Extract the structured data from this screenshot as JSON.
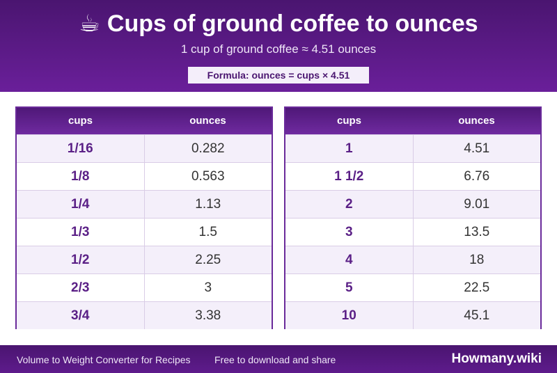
{
  "header": {
    "icon": "coffee-cup-icon",
    "icon_glyph": "☕",
    "title": "Cups of ground coffee to ounces",
    "subtitle": "1 cup of ground coffee ≈ 4.51 ounces",
    "formula": "Formula: ounces = cups × 4.51"
  },
  "tables": [
    {
      "headers": [
        "cups",
        "ounces"
      ],
      "rows": [
        [
          "1/16",
          "0.282"
        ],
        [
          "1/8",
          "0.563"
        ],
        [
          "1/4",
          "1.13"
        ],
        [
          "1/3",
          "1.5"
        ],
        [
          "1/2",
          "2.25"
        ],
        [
          "2/3",
          "3"
        ],
        [
          "3/4",
          "3.38"
        ]
      ]
    },
    {
      "headers": [
        "cups",
        "ounces"
      ],
      "rows": [
        [
          "1",
          "4.51"
        ],
        [
          "1 1/2",
          "6.76"
        ],
        [
          "2",
          "9.01"
        ],
        [
          "3",
          "13.5"
        ],
        [
          "4",
          "18"
        ],
        [
          "5",
          "22.5"
        ],
        [
          "10",
          "45.1"
        ]
      ]
    }
  ],
  "footer": {
    "left": "Volume to Weight Converter for Recipes",
    "middle": "Free to download and share",
    "brand": "Howmany.wiki"
  },
  "colors": {
    "header_bg": "#5a1a86",
    "accent": "#6a2a9a",
    "alt_row": "#f4effa"
  }
}
